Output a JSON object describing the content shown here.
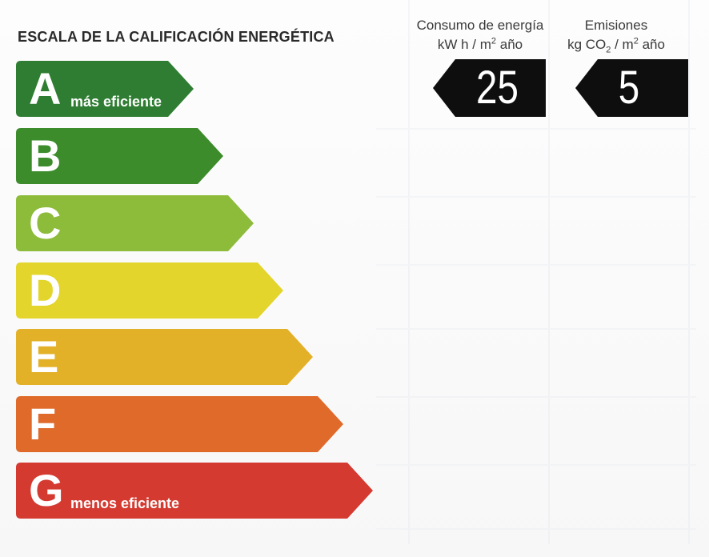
{
  "title": "ESCALA DE LA CALIFICACIÓN ENERGÉTICA",
  "consumo": {
    "line1": "Consumo de energía",
    "unit_kwh": "kW h  / m",
    "unit_sup": "2",
    "unit_tail": " año",
    "value": "25"
  },
  "emisiones": {
    "line1": "Emisiones",
    "unit_kg": "kg CO",
    "unit_sub": "2",
    "unit_mid": "  / m",
    "unit_sup": "2",
    "unit_tail": " año",
    "value": "5"
  },
  "ratings": [
    {
      "letter": "A",
      "caption": "más eficiente",
      "color": "#2f7d32"
    },
    {
      "letter": "B",
      "caption": "",
      "color": "#3c8c2c"
    },
    {
      "letter": "C",
      "caption": "",
      "color": "#8dbb3a"
    },
    {
      "letter": "D",
      "caption": "",
      "color": "#e3d52b"
    },
    {
      "letter": "E",
      "caption": "",
      "color": "#e3b128"
    },
    {
      "letter": "F",
      "caption": "",
      "color": "#df6a2a"
    },
    {
      "letter": "G",
      "caption": "menos eficiente",
      "color": "#d43a30"
    }
  ],
  "value_box_color": "#0e0e0e"
}
